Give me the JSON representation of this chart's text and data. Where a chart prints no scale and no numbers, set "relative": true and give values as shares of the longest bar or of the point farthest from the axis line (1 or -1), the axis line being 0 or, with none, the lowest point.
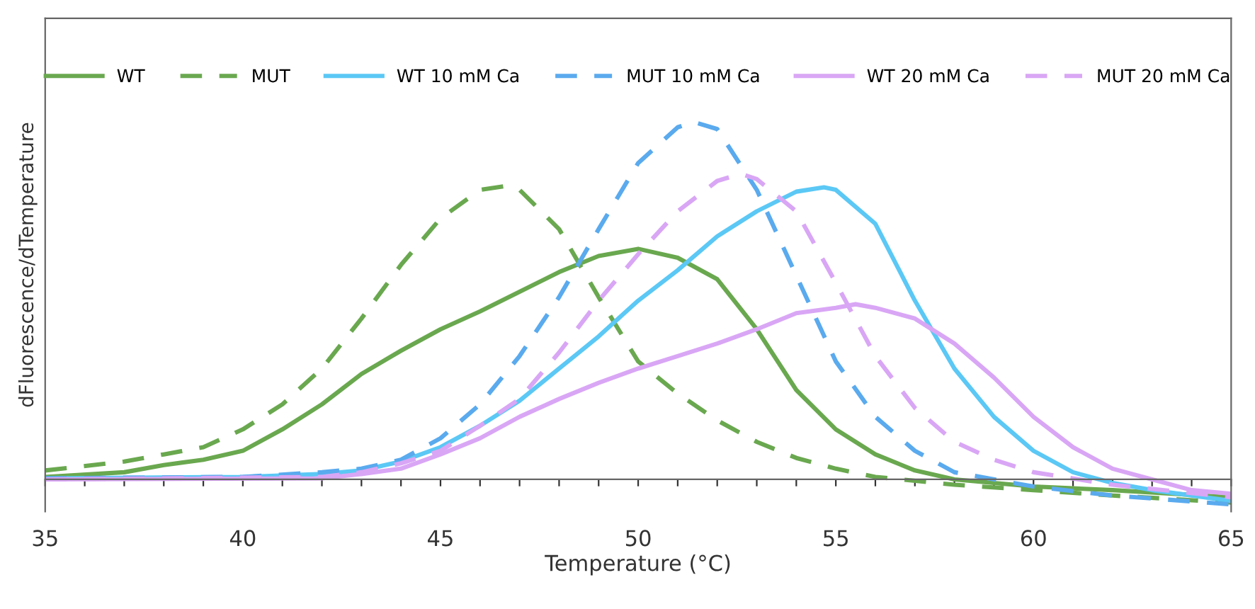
{
  "chart_data": {
    "type": "line",
    "relative": true,
    "xlabel": "Temperature (°C)",
    "ylabel": "dFluorescence/dTemperature",
    "xlim": [
      35,
      65
    ],
    "xticks": [
      35,
      {
        "value": 36,
        "label": null
      },
      {
        "value": 37,
        "label": null
      },
      {
        "value": 38,
        "label": null
      },
      {
        "value": 39,
        "label": null
      },
      40,
      {
        "value": 41,
        "label": null
      },
      {
        "value": 42,
        "label": null
      },
      {
        "value": 43,
        "label": null
      },
      {
        "value": 44,
        "label": null
      },
      45,
      {
        "value": 46,
        "label": null
      },
      {
        "value": 47,
        "label": null
      },
      {
        "value": 48,
        "label": null
      },
      {
        "value": 49,
        "label": null
      },
      50,
      {
        "value": 51,
        "label": null
      },
      {
        "value": 52,
        "label": null
      },
      {
        "value": 53,
        "label": null
      },
      {
        "value": 54,
        "label": null
      },
      55,
      {
        "value": 56,
        "label": null
      },
      {
        "value": 57,
        "label": null
      },
      {
        "value": 58,
        "label": null
      },
      {
        "value": 59,
        "label": null
      },
      60,
      {
        "value": 61,
        "label": null
      },
      {
        "value": 62,
        "label": null
      },
      {
        "value": 63,
        "label": null
      },
      {
        "value": 64,
        "label": null
      },
      65
    ],
    "grid": false,
    "legend": "top",
    "marker": "none",
    "series": [
      {
        "name": "WT",
        "color": "#6aa84f",
        "line_style": "solid",
        "x": [
          35,
          37,
          38,
          39,
          40,
          41,
          42,
          43,
          44,
          45,
          46,
          47,
          48,
          49,
          50,
          51,
          52,
          53,
          54,
          55,
          56,
          57,
          58,
          60,
          62,
          65
        ],
        "values": [
          0.007,
          0.02,
          0.04,
          0.055,
          0.08,
          0.14,
          0.21,
          0.295,
          0.36,
          0.42,
          0.47,
          0.525,
          0.58,
          0.625,
          0.645,
          0.62,
          0.56,
          0.42,
          0.25,
          0.14,
          0.07,
          0.025,
          0,
          -0.02,
          -0.03,
          -0.05
        ]
      },
      {
        "name": "MUT",
        "color": "#6aa84f",
        "line_style": "dashed",
        "x": [
          35,
          37,
          38,
          39,
          40,
          41,
          42,
          43,
          44,
          45,
          46,
          46.6,
          47,
          48,
          49,
          50,
          51,
          52,
          53,
          54,
          55,
          56,
          58,
          60,
          62,
          65
        ],
        "values": [
          0.025,
          0.05,
          0.07,
          0.09,
          0.14,
          0.21,
          0.31,
          0.45,
          0.6,
          0.73,
          0.81,
          0.82,
          0.81,
          0.7,
          0.51,
          0.33,
          0.24,
          0.165,
          0.105,
          0.06,
          0.03,
          0.007,
          -0.015,
          -0.03,
          -0.045,
          -0.065
        ]
      },
      {
        "name": "WT 10 mM Ca",
        "color": "#5bc8f5",
        "line_style": "solid",
        "x": [
          35,
          40,
          42,
          43,
          44,
          45,
          46,
          47,
          48,
          49,
          50,
          51,
          52,
          53,
          54,
          54.7,
          55,
          56,
          57,
          58,
          59,
          60,
          61,
          62,
          63,
          65
        ],
        "values": [
          0.003,
          0.007,
          0.015,
          0.025,
          0.05,
          0.09,
          0.15,
          0.22,
          0.31,
          0.4,
          0.5,
          0.585,
          0.68,
          0.75,
          0.805,
          0.817,
          0.81,
          0.715,
          0.5,
          0.31,
          0.175,
          0.08,
          0.02,
          -0.01,
          -0.03,
          -0.06
        ]
      },
      {
        "name": "MUT 10 mM Ca",
        "color": "#5aaaee",
        "line_style": "dashed",
        "x": [
          35,
          40,
          42,
          43,
          44,
          45,
          46,
          47,
          48,
          49,
          50,
          51,
          51.4,
          52,
          53,
          54,
          55,
          56,
          57,
          58,
          60,
          62,
          65
        ],
        "values": [
          0.003,
          0.007,
          0.02,
          0.03,
          0.055,
          0.115,
          0.21,
          0.345,
          0.51,
          0.7,
          0.885,
          0.985,
          1,
          0.98,
          0.81,
          0.57,
          0.33,
          0.175,
          0.08,
          0.02,
          -0.02,
          -0.045,
          -0.07
        ]
      },
      {
        "name": "WT 20 mM Ca",
        "color": "#d9a6f5",
        "line_style": "solid",
        "x": [
          35,
          42,
          43,
          44,
          45,
          46,
          47,
          48,
          49,
          50,
          51,
          52,
          53,
          54,
          55,
          55.5,
          56,
          57,
          58,
          59,
          60,
          61,
          62,
          63,
          64,
          65
        ],
        "values": [
          0,
          0.003,
          0.015,
          0.03,
          0.07,
          0.115,
          0.175,
          0.225,
          0.27,
          0.31,
          0.345,
          0.38,
          0.42,
          0.465,
          0.48,
          0.49,
          0.48,
          0.45,
          0.38,
          0.285,
          0.175,
          0.09,
          0.03,
          0,
          -0.03,
          -0.04
        ]
      },
      {
        "name": "MUT 20 mM Ca",
        "color": "#d9a6f5",
        "line_style": "dashed",
        "x": [
          35,
          42,
          43,
          44,
          45,
          46,
          47,
          48,
          49,
          50,
          51,
          52,
          52.6,
          53,
          54,
          55,
          56,
          57,
          58,
          59,
          60,
          62,
          65
        ],
        "values": [
          0,
          0.007,
          0.02,
          0.045,
          0.08,
          0.15,
          0.225,
          0.355,
          0.5,
          0.63,
          0.75,
          0.835,
          0.855,
          0.84,
          0.75,
          0.55,
          0.345,
          0.2,
          0.105,
          0.055,
          0.02,
          -0.015,
          -0.05
        ]
      }
    ]
  }
}
